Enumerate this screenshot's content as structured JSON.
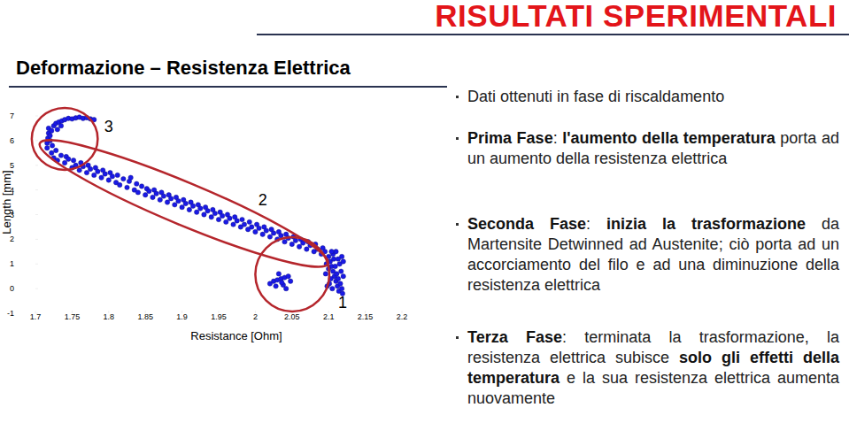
{
  "header": {
    "title": "RISULTATI SPERIMENTALI",
    "subtitle": "Deformazione – Resistenza Elettrica"
  },
  "chart_data": {
    "type": "scatter",
    "x_label": "Resistance [Ohm]",
    "y_label": "Length [mm]",
    "color": "#1a1ae6",
    "marker": "circle",
    "grid": false,
    "xlim": [
      1.7,
      2.2
    ],
    "ylim": [
      -1,
      7
    ],
    "xticks": [
      1.7,
      1.75,
      1.8,
      1.85,
      1.9,
      1.95,
      2,
      2.05,
      2.1,
      2.15,
      2.2
    ],
    "yticks": [
      -1,
      0,
      1,
      2,
      3,
      4,
      5,
      6,
      7
    ],
    "x": [
      1.716,
      1.716,
      1.717,
      1.718,
      1.718,
      1.72,
      1.72,
      1.722,
      1.725,
      1.728,
      1.732,
      1.736,
      1.74,
      1.745,
      1.75,
      1.755,
      1.76,
      1.765,
      1.77,
      1.775,
      1.78,
      1.73,
      1.735,
      1.723,
      1.722,
      1.725,
      1.728,
      1.73,
      1.735,
      1.74,
      1.742,
      1.745,
      1.75,
      1.752,
      1.755,
      1.76,
      1.762,
      1.765,
      1.77,
      1.772,
      1.775,
      1.78,
      1.782,
      1.785,
      1.79,
      1.792,
      1.795,
      1.8,
      1.802,
      1.805,
      1.81,
      1.812,
      1.815,
      1.82,
      1.825,
      1.828,
      1.83,
      1.835,
      1.838,
      1.84,
      1.845,
      1.85,
      1.852,
      1.855,
      1.86,
      1.862,
      1.865,
      1.87,
      1.872,
      1.875,
      1.88,
      1.882,
      1.885,
      1.89,
      1.892,
      1.895,
      1.9,
      1.902,
      1.905,
      1.91,
      1.912,
      1.915,
      1.92,
      1.922,
      1.925,
      1.93,
      1.932,
      1.935,
      1.94,
      1.942,
      1.945,
      1.95,
      1.952,
      1.955,
      1.96,
      1.962,
      1.965,
      1.97,
      1.972,
      1.975,
      1.98,
      1.982,
      1.985,
      1.99,
      1.992,
      1.995,
      2.0,
      2.002,
      2.005,
      2.01,
      2.012,
      2.015,
      2.02,
      2.022,
      2.025,
      2.03,
      2.032,
      2.035,
      2.04,
      2.042,
      2.045,
      2.05,
      2.052,
      2.055,
      2.06,
      2.062,
      2.065,
      2.07,
      2.072,
      2.075,
      2.08,
      2.082,
      2.085,
      2.09,
      2.092,
      2.095,
      2.1,
      2.102,
      2.104,
      2.106,
      2.108,
      2.11,
      2.112,
      2.114,
      2.1,
      2.103,
      2.105,
      2.107,
      2.109,
      2.111,
      2.113,
      2.115,
      2.116,
      2.117,
      2.118,
      2.119,
      2.101,
      2.106,
      2.11,
      2.113,
      2.096,
      2.098,
      2.097,
      2.12,
      2.12,
      2.118,
      2.104,
      2.02,
      2.025,
      2.03,
      2.035,
      2.04,
      2.045,
      2.032,
      2.038,
      2.042,
      2.028,
      2.048,
      2.036
    ],
    "values": [
      5.7,
      5.9,
      6.1,
      6.3,
      6.5,
      6.0,
      6.2,
      6.4,
      6.6,
      6.7,
      6.75,
      6.8,
      6.85,
      6.9,
      6.88,
      6.92,
      6.95,
      6.9,
      6.93,
      6.88,
      6.85,
      6.45,
      6.6,
      5.8,
      5.5,
      5.3,
      5.6,
      5.2,
      5.4,
      5.1,
      5.35,
      5.25,
      4.9,
      5.2,
      5.0,
      4.8,
      5.1,
      4.95,
      4.7,
      5.0,
      4.85,
      4.6,
      4.9,
      4.75,
      4.5,
      4.8,
      4.65,
      4.4,
      4.7,
      4.55,
      4.3,
      4.6,
      4.2,
      4.45,
      4.1,
      4.35,
      4.5,
      4.0,
      4.25,
      3.9,
      4.15,
      3.8,
      4.05,
      3.95,
      3.7,
      4.0,
      3.85,
      3.6,
      3.9,
      3.75,
      3.5,
      3.8,
      3.65,
      3.4,
      3.7,
      3.55,
      3.3,
      3.6,
      3.45,
      3.2,
      3.5,
      3.35,
      3.1,
      3.4,
      3.25,
      3.0,
      3.3,
      3.15,
      2.9,
      3.2,
      3.05,
      2.8,
      3.1,
      2.95,
      2.7,
      3.0,
      2.85,
      2.6,
      2.9,
      2.75,
      2.5,
      2.8,
      2.6,
      2.4,
      2.7,
      2.5,
      2.3,
      2.6,
      2.45,
      2.2,
      2.5,
      2.35,
      2.1,
      2.4,
      2.25,
      2.0,
      2.3,
      2.15,
      1.9,
      2.2,
      2.05,
      1.8,
      2.1,
      1.95,
      1.7,
      2.0,
      1.85,
      1.6,
      1.9,
      1.75,
      1.5,
      1.8,
      1.6,
      1.4,
      1.65,
      1.5,
      1.3,
      1.1,
      0.9,
      0.7,
      0.5,
      0.3,
      0.1,
      -0.1,
      0.8,
      0.4,
      0.0,
      1.2,
      0.9,
      0.6,
      0.4,
      1.0,
      0.2,
      0.7,
      1.3,
      -0.2,
      0.2,
      1.4,
      1.5,
      1.2,
      0.6,
      0.1,
      1.0,
      0.5,
      1.1,
      0.0,
      1.5,
      0.2,
      0.3,
      0.35,
      0.4,
      0.45,
      0.5,
      0.6,
      0.15,
      0.0,
      0.1,
      0.3,
      0.25
    ],
    "annotations": [
      {
        "text": "1",
        "x": 2.119,
        "y": -0.56,
        "region": [
          [
            2.0,
            0.58
          ],
          [
            2.101,
            0.58
          ]
        ]
      },
      {
        "text": "2",
        "x": 2.01,
        "y": 3.6,
        "region": [
          [
            1.706,
            5.89
          ],
          [
            2.099,
            1.01
          ]
        ]
      },
      {
        "text": "3",
        "x": 1.8,
        "y": 6.57,
        "region": [
          [
            1.695,
            6.07
          ],
          [
            1.785,
            6.07
          ]
        ]
      }
    ]
  },
  "bullets": [
    [
      {
        "text": "Dati ottenuti in fase di riscaldamento",
        "bold": false
      }
    ],
    [
      {
        "text": "Prima Fase",
        "bold": true
      },
      {
        "text": ": ",
        "bold": false
      },
      {
        "text": "l'aumento della temperatura",
        "bold": true
      },
      {
        "text": " porta ad un aumento della resistenza elettrica",
        "bold": false
      }
    ],
    [
      {
        "text": "Seconda Fase",
        "bold": true
      },
      {
        "text": ": ",
        "bold": false
      },
      {
        "text": "inizia la trasformazione",
        "bold": true
      },
      {
        "text": " da Martensite Detwinned ad Austenite; ciò porta ad un accorciamento del filo e ad una diminuzione della resistenza elettrica",
        "bold": false
      }
    ],
    [
      {
        "text": "Terza Fase",
        "bold": true
      },
      {
        "text": ": terminata la trasformazione, la resistenza elettrica subisce ",
        "bold": false
      },
      {
        "text": "solo gli effetti della temperatura",
        "bold": true
      },
      {
        "text": " e la sua resistenza elettrica aumenta nuovamente",
        "bold": false
      }
    ]
  ]
}
